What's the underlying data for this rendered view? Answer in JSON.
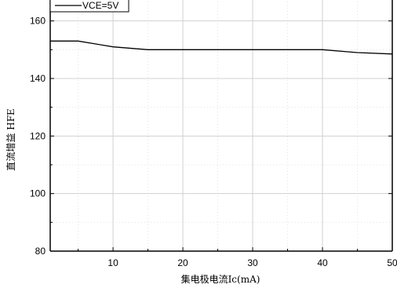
{
  "chart_data": {
    "type": "line",
    "xlabel": "集电极电流Ic(mA)",
    "ylabel": "直流增益  HFE",
    "xlim": [
      1,
      50
    ],
    "ylim": [
      80,
      170
    ],
    "xticks": [
      10,
      20,
      30,
      40,
      50
    ],
    "yticks": [
      80,
      100,
      120,
      140,
      160
    ],
    "grid": true,
    "legend_position": "top-left",
    "series": [
      {
        "name": "VCE=5V",
        "color": "#000000",
        "x": [
          1,
          5,
          10,
          15,
          20,
          30,
          40,
          45,
          50
        ],
        "y": [
          153,
          153,
          151,
          150,
          150,
          150,
          150,
          149,
          148.5
        ]
      }
    ]
  }
}
